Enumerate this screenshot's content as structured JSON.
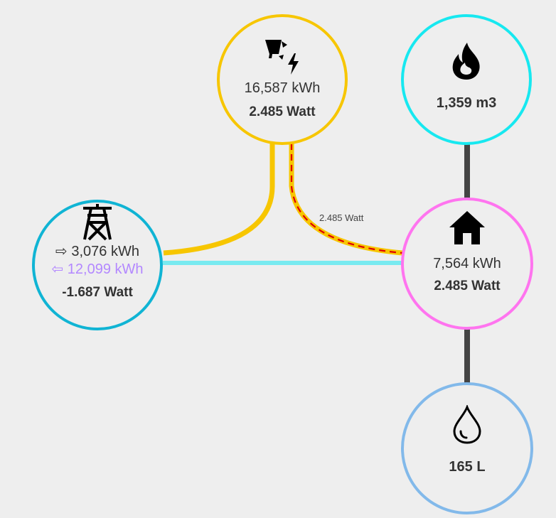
{
  "solar": {
    "icon": "solar-power-icon",
    "energy": "16,587 kWh",
    "power": "2.485 Watt",
    "color": "#f7c600"
  },
  "gas": {
    "icon": "fire-icon",
    "value": "1,359 m3",
    "color": "#17e8f0"
  },
  "grid": {
    "icon": "transmission-tower-icon",
    "import": "⇨ 3,076 kWh",
    "export": "⇦ 12,099 kWh",
    "power": "-1.687 Watt",
    "color": "#10b4d4",
    "export_color": "#b388ff"
  },
  "home": {
    "icon": "home-icon",
    "energy": "7,564 kWh",
    "power": "2.485 Watt",
    "color": "#ff74ef"
  },
  "water": {
    "icon": "water-drop-icon",
    "value": "165 L",
    "color": "#82b9ea"
  },
  "flows": {
    "solar_to_home_label": "2.485 Watt",
    "solar_line_color": "#f7c600",
    "grid_line_color": "#78eaf0",
    "dash_color": "#e00000",
    "connector_color": "#444444"
  }
}
